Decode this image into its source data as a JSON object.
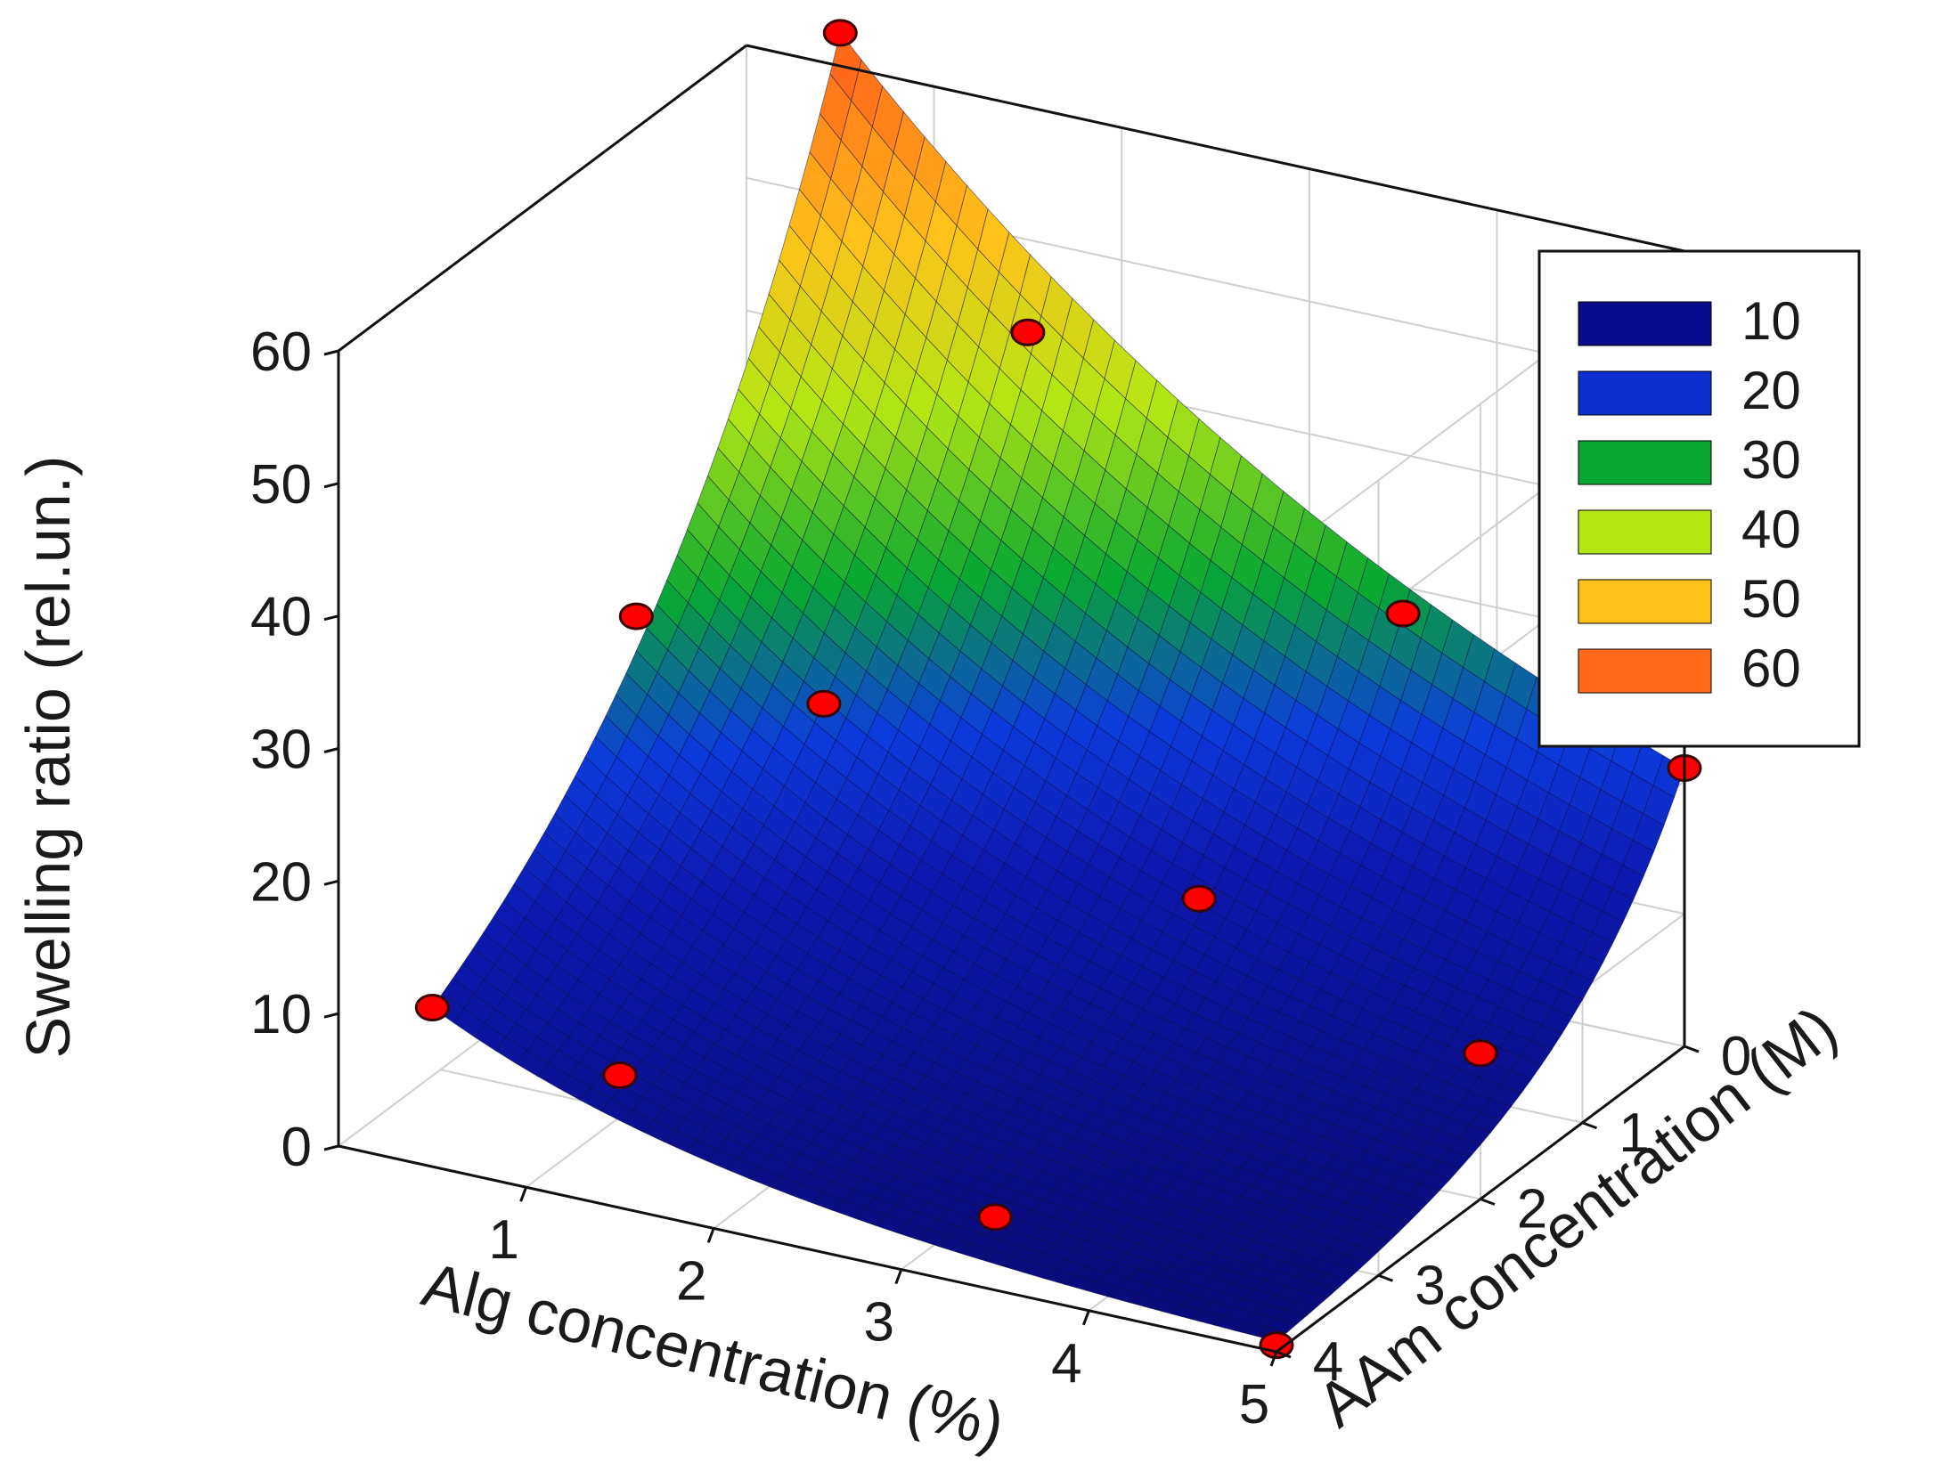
{
  "chart_data": {
    "type": "surface3d",
    "title": "",
    "xlabel": "Alg concentration (%)",
    "ylabel": "AAm concentration (M)",
    "zlabel": "Swelling ratio (rel.un.)",
    "xlim": [
      0,
      5
    ],
    "ylim": [
      0,
      4
    ],
    "zlim": [
      0,
      60
    ],
    "xticks": [
      "1",
      "2",
      "3",
      "4",
      "5"
    ],
    "yticks": [
      "0",
      "1",
      "2",
      "3",
      "4"
    ],
    "zticks": [
      "0",
      "10",
      "20",
      "30",
      "40",
      "50",
      "60"
    ],
    "grid": true,
    "legend_position": "top-right",
    "legend": [
      {
        "label": "10",
        "color": "#0a0a8c"
      },
      {
        "label": "20",
        "color": "#0d2fd0"
      },
      {
        "label": "30",
        "color": "#08a832"
      },
      {
        "label": "40",
        "color": "#b4e614"
      },
      {
        "label": "50",
        "color": "#ffc21a"
      },
      {
        "label": "60",
        "color": "#ff6a1a"
      }
    ],
    "marker_color": "#ff0000",
    "data_points": [
      {
        "alg": 0.5,
        "aam": 0,
        "swelling": 62.5
      },
      {
        "alg": 1.5,
        "aam": 0,
        "swelling": 43
      },
      {
        "alg": 3.5,
        "aam": 0,
        "swelling": 28
      },
      {
        "alg": 5,
        "aam": 0,
        "swelling": 21
      },
      {
        "alg": 0.5,
        "aam": 2,
        "swelling": 30
      },
      {
        "alg": 1.5,
        "aam": 2,
        "swelling": 26.5
      },
      {
        "alg": 3.5,
        "aam": 2,
        "swelling": 18
      },
      {
        "alg": 5,
        "aam": 2,
        "swelling": 11
      },
      {
        "alg": 0.5,
        "aam": 4,
        "swelling": 12
      },
      {
        "alg": 1.5,
        "aam": 4,
        "swelling": 10
      },
      {
        "alg": 3.5,
        "aam": 4,
        "swelling": 5.5
      },
      {
        "alg": 5,
        "aam": 4,
        "swelling": 0.5
      }
    ]
  }
}
